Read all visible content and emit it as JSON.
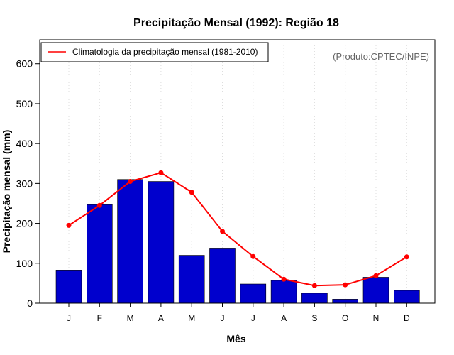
{
  "chart_data": {
    "type": "bar",
    "title": "Precipitação Mensal (1992): Região 18",
    "xlabel": "Mês",
    "ylabel": "Precipitação mensal (mm)",
    "ylim": [
      0,
      660
    ],
    "yticks": [
      0,
      100,
      200,
      300,
      400,
      500,
      600
    ],
    "categories": [
      "J",
      "F",
      "M",
      "A",
      "M",
      "J",
      "J",
      "A",
      "S",
      "O",
      "N",
      "D"
    ],
    "series": [
      {
        "name": "Precipitação mensal (1992)",
        "type": "bar",
        "color": "#0000cd",
        "values": [
          83,
          247,
          310,
          305,
          120,
          138,
          48,
          57,
          25,
          10,
          65,
          32
        ]
      },
      {
        "name": "Climatologia da precipitação mensal (1981-2010)",
        "type": "line",
        "color": "#ff0000",
        "values": [
          195,
          245,
          305,
          327,
          278,
          180,
          117,
          60,
          44,
          46,
          69,
          116
        ]
      }
    ],
    "legend": {
      "position": "top-left",
      "entries": [
        "Climatologia da precipitação mensal (1981-2010)"
      ]
    },
    "grid": "vertical dotted at category positions",
    "annotation": "(Produto:CPTEC/INPE)"
  }
}
